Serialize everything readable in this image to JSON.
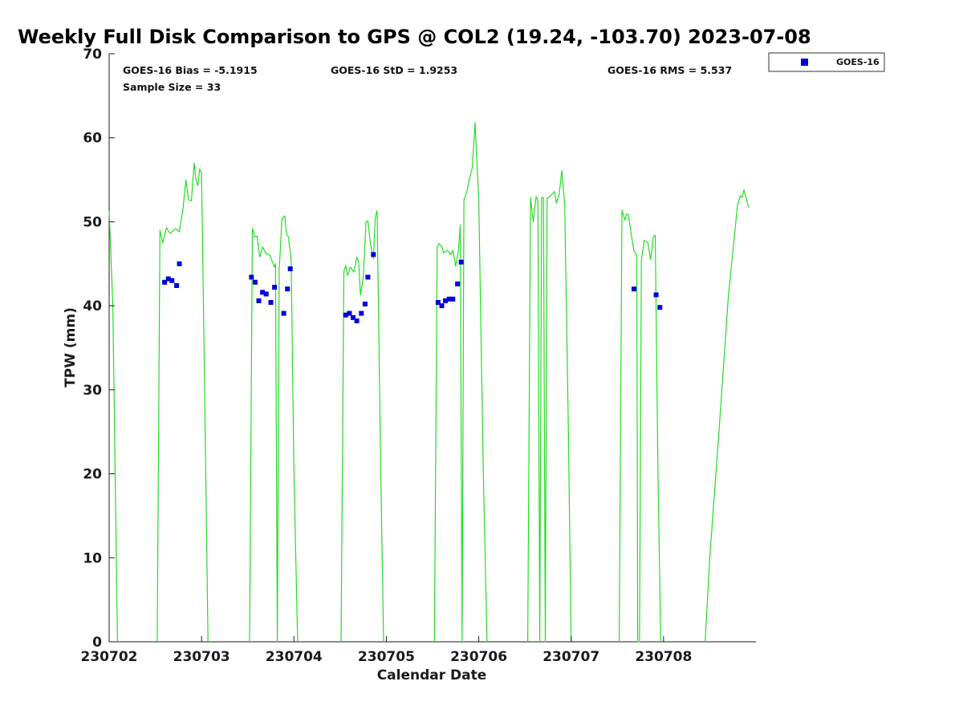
{
  "chart_data": {
    "type": "line",
    "title": "Weekly Full Disk Comparison to GPS @ COL2 (19.24, -103.70) 2023-07-08",
    "xlabel": "Calendar Date",
    "ylabel": "TPW (mm)",
    "x_unit": "days",
    "xlim": [
      0,
      7
    ],
    "ylim": [
      0,
      70
    ],
    "xticks": [
      0,
      1,
      2,
      3,
      4,
      5,
      6
    ],
    "xtick_labels": [
      "230702",
      "230703",
      "230704",
      "230705",
      "230706",
      "230707",
      "230708"
    ],
    "yticks": [
      0,
      10,
      20,
      30,
      40,
      50,
      60,
      70
    ],
    "stats": {
      "bias": "GOES-16 Bias = -5.1915",
      "std": "GOES-16 StD = 1.9253",
      "rms": "GOES-16 RMS = 5.537",
      "sample": "Sample Size = 33"
    },
    "legend": {
      "label": "GOES-16",
      "position": "top-right, outside plot"
    },
    "colors": {
      "gps": "#22dd22",
      "goes": "#0000dd"
    },
    "gps_segments": [
      [
        [
          0.0,
          51.3
        ],
        [
          0.04,
          40
        ],
        [
          0.09,
          0
        ]
      ],
      [
        [
          0.52,
          0
        ],
        [
          0.55,
          49
        ],
        [
          0.58,
          47.5
        ],
        [
          0.62,
          49.3
        ],
        [
          0.66,
          48.6
        ],
        [
          0.72,
          49.2
        ],
        [
          0.76,
          48.8
        ],
        [
          0.8,
          51.6
        ],
        [
          0.83,
          55
        ],
        [
          0.86,
          52.6
        ],
        [
          0.89,
          52.5
        ],
        [
          0.92,
          57
        ],
        [
          0.94,
          55
        ],
        [
          0.96,
          54.3
        ],
        [
          0.98,
          56.3
        ],
        [
          1.0,
          55.8
        ],
        [
          1.02,
          41
        ],
        [
          1.07,
          0
        ]
      ],
      [
        [
          1.52,
          0
        ],
        [
          1.55,
          49.2
        ],
        [
          1.58,
          48.2
        ],
        [
          1.6,
          48.3
        ],
        [
          1.63,
          45.8
        ],
        [
          1.66,
          47
        ],
        [
          1.7,
          46.2
        ],
        [
          1.74,
          46
        ],
        [
          1.79,
          44.6
        ],
        [
          1.8,
          45
        ],
        [
          1.82,
          0
        ],
        [
          1.84,
          44.2
        ],
        [
          1.87,
          50.3
        ],
        [
          1.9,
          50.7
        ],
        [
          1.92,
          48.5
        ],
        [
          1.94,
          48.2
        ],
        [
          1.97,
          45.5
        ],
        [
          2.0,
          20
        ],
        [
          2.04,
          0
        ]
      ],
      [
        [
          2.51,
          0
        ],
        [
          2.54,
          44.1
        ],
        [
          2.56,
          44.8
        ],
        [
          2.58,
          43.6
        ],
        [
          2.61,
          44.6
        ],
        [
          2.65,
          44
        ],
        [
          2.68,
          45.8
        ],
        [
          2.7,
          45.2
        ],
        [
          2.72,
          41.3
        ],
        [
          2.75,
          43.3
        ],
        [
          2.78,
          50
        ],
        [
          2.8,
          50.1
        ],
        [
          2.83,
          47.2
        ],
        [
          2.86,
          45.6
        ],
        [
          2.88,
          50.5
        ],
        [
          2.9,
          51.3
        ],
        [
          2.94,
          20
        ],
        [
          2.97,
          0
        ]
      ],
      [
        [
          3.52,
          0
        ],
        [
          3.55,
          47
        ],
        [
          3.57,
          47.4
        ],
        [
          3.6,
          47.1
        ],
        [
          3.62,
          46.3
        ],
        [
          3.66,
          46.6
        ],
        [
          3.7,
          46.1
        ],
        [
          3.72,
          46.6
        ],
        [
          3.75,
          44.7
        ],
        [
          3.78,
          46.5
        ],
        [
          3.8,
          49.6
        ],
        [
          3.82,
          0
        ],
        [
          3.84,
          52.6
        ],
        [
          3.87,
          53.5
        ],
        [
          3.9,
          55.2
        ],
        [
          3.93,
          56.4
        ],
        [
          3.96,
          61.8
        ],
        [
          3.98,
          57
        ],
        [
          4.0,
          52.5
        ],
        [
          4.05,
          20
        ],
        [
          4.09,
          0
        ]
      ],
      [
        [
          4.53,
          0
        ],
        [
          4.56,
          52.9
        ],
        [
          4.59,
          50
        ],
        [
          4.62,
          53
        ],
        [
          4.64,
          52.5
        ],
        [
          4.66,
          0
        ],
        [
          4.68,
          52.9
        ],
        [
          4.7,
          52.9
        ],
        [
          4.72,
          0
        ],
        [
          4.74,
          52.8
        ],
        [
          4.77,
          53
        ],
        [
          4.82,
          53.6
        ],
        [
          4.84,
          52.2
        ],
        [
          4.87,
          53.3
        ],
        [
          4.9,
          56.1
        ],
        [
          4.93,
          52
        ],
        [
          4.97,
          25
        ],
        [
          5.0,
          0
        ]
      ],
      [
        [
          5.52,
          0
        ],
        [
          5.55,
          51.4
        ],
        [
          5.58,
          50.2
        ],
        [
          5.6,
          50.9
        ],
        [
          5.62,
          50.8
        ],
        [
          5.65,
          48.5
        ],
        [
          5.68,
          46.5
        ],
        [
          5.71,
          46
        ],
        [
          5.72,
          0
        ],
        [
          5.74,
          0
        ],
        [
          5.76,
          45.4
        ],
        [
          5.79,
          47.8
        ],
        [
          5.83,
          47.5
        ],
        [
          5.86,
          45.5
        ],
        [
          5.89,
          48.2
        ],
        [
          5.91,
          48.4
        ],
        [
          5.94,
          20
        ],
        [
          5.97,
          0
        ]
      ],
      [
        [
          6.45,
          0
        ],
        [
          6.5,
          10
        ],
        [
          6.6,
          25
        ],
        [
          6.7,
          41
        ],
        [
          6.8,
          52
        ],
        [
          6.83,
          53.1
        ],
        [
          6.85,
          52.9
        ],
        [
          6.87,
          53.8
        ],
        [
          6.89,
          53
        ],
        [
          6.92,
          51.7
        ]
      ]
    ],
    "goes_points": [
      [
        0.6,
        42.8
      ],
      [
        0.64,
        43.2
      ],
      [
        0.68,
        43
      ],
      [
        0.73,
        42.4
      ],
      [
        0.76,
        45
      ],
      [
        1.54,
        43.4
      ],
      [
        1.58,
        42.8
      ],
      [
        1.62,
        40.6
      ],
      [
        1.66,
        41.6
      ],
      [
        1.7,
        41.4
      ],
      [
        1.75,
        40.4
      ],
      [
        1.79,
        42.2
      ],
      [
        1.89,
        39.1
      ],
      [
        1.93,
        42
      ],
      [
        1.96,
        44.4
      ],
      [
        2.56,
        38.9
      ],
      [
        2.6,
        39.1
      ],
      [
        2.64,
        38.6
      ],
      [
        2.68,
        38.2
      ],
      [
        2.73,
        39.1
      ],
      [
        2.77,
        40.2
      ],
      [
        2.8,
        43.4
      ],
      [
        2.86,
        46.1
      ],
      [
        3.56,
        40.4
      ],
      [
        3.6,
        40
      ],
      [
        3.64,
        40.6
      ],
      [
        3.68,
        40.8
      ],
      [
        3.72,
        40.8
      ],
      [
        3.77,
        42.6
      ],
      [
        3.81,
        45.2
      ],
      [
        5.68,
        42
      ],
      [
        5.92,
        41.3
      ],
      [
        5.96,
        39.8
      ]
    ]
  }
}
